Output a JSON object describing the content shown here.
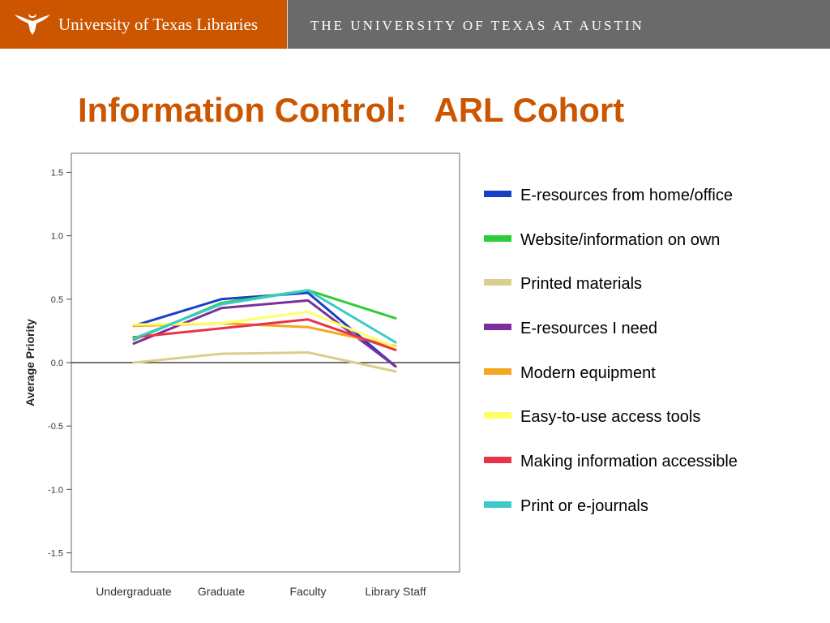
{
  "header": {
    "brand": "University of Texas Libraries",
    "ut_name": "THE UNIVERSITY OF TEXAS AT AUSTIN",
    "brand_color": "#cc5500",
    "bar_color": "#6a6a6a"
  },
  "slide": {
    "title": "Information Control:   ARL Cohort"
  },
  "chart_data": {
    "type": "line",
    "title": "",
    "xlabel": "",
    "ylabel": "Average Priority",
    "categories": [
      "Undergraduate",
      "Graduate",
      "Faculty",
      "Library Staff"
    ],
    "ylim": [
      -1.65,
      1.65
    ],
    "yticks": [
      "1.5",
      "1.0",
      "0.5",
      "0.0",
      "-0.5",
      "-1.0",
      "-1.5"
    ],
    "ytick_values": [
      1.5,
      1.0,
      0.5,
      0.0,
      -0.5,
      -1.0,
      -1.5
    ],
    "reference_line": 0.0,
    "grid": false,
    "legend_position": "right",
    "series": [
      {
        "name": "E-resources from home/office",
        "color": "#1a3fc7",
        "values": [
          0.29,
          0.5,
          0.55,
          -0.03
        ]
      },
      {
        "name": "Website/information on own",
        "color": "#2ecc3a",
        "values": [
          0.18,
          0.47,
          0.57,
          0.35
        ]
      },
      {
        "name": "Printed materials",
        "color": "#d9cf8c",
        "values": [
          0.0,
          0.07,
          0.08,
          -0.07
        ]
      },
      {
        "name": "E-resources I need",
        "color": "#7b2f9e",
        "values": [
          0.15,
          0.43,
          0.49,
          -0.03
        ]
      },
      {
        "name": "Modern equipment",
        "color": "#f5a623",
        "values": [
          0.29,
          0.31,
          0.28,
          0.13
        ]
      },
      {
        "name": "Easy-to-use access tools",
        "color": "#ffff66",
        "values": [
          0.3,
          0.31,
          0.4,
          0.12
        ]
      },
      {
        "name": "Making information accessible",
        "color": "#e8344a",
        "values": [
          0.2,
          0.27,
          0.34,
          0.1
        ]
      },
      {
        "name": "Print or e-journals",
        "color": "#3cc9c9",
        "values": [
          0.19,
          0.46,
          0.57,
          0.16
        ]
      }
    ]
  }
}
